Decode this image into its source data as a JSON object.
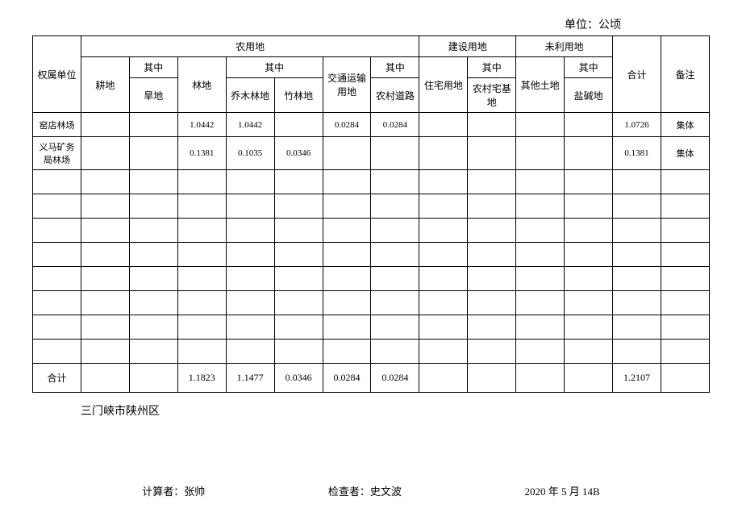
{
  "unit_label": "单位：公顷",
  "headers": {
    "owner_unit": "权属单位",
    "agri_land": "农用地",
    "construction_land": "建设用地",
    "unused_land": "未利用地",
    "total": "合计",
    "remark": "备注",
    "cultivated": "耕地",
    "of_which": "其中",
    "forest": "林地",
    "traffic": "交通运输用地",
    "residential": "住宅用地",
    "other_land": "其他土地",
    "dry_land": "旱地",
    "arbor_forest": "乔木林地",
    "bamboo_forest": "竹林地",
    "rural_road": "农村道路",
    "rural_homestead": "农村宅基地",
    "saline_alkali": "盐碱地"
  },
  "rows": [
    {
      "owner": "窑店林场",
      "cultivated": "",
      "dry_land": "",
      "forest": "1.0442",
      "arbor_forest": "1.0442",
      "bamboo_forest": "",
      "traffic": "0.0284",
      "rural_road": "0.0284",
      "residential": "",
      "rural_homestead": "",
      "other_land": "",
      "saline_alkali": "",
      "total": "1.0726",
      "remark": "集体"
    },
    {
      "owner": "义马矿务局林场",
      "cultivated": "",
      "dry_land": "",
      "forest": "0.1381",
      "arbor_forest": "0.1035",
      "bamboo_forest": "0.0346",
      "traffic": "",
      "rural_road": "",
      "residential": "",
      "rural_homestead": "",
      "other_land": "",
      "saline_alkali": "",
      "total": "0.1381",
      "remark": "集体"
    }
  ],
  "totals": {
    "owner": "合计",
    "cultivated": "",
    "dry_land": "",
    "forest": "1.1823",
    "arbor_forest": "1.1477",
    "bamboo_forest": "0.0346",
    "traffic": "0.0284",
    "rural_road": "0.0284",
    "residential": "",
    "rural_homestead": "",
    "other_land": "",
    "saline_alkali": "",
    "total": "1.2107",
    "remark": ""
  },
  "region": "三门峡市陕州区",
  "footer": {
    "calc_label": "计算者：",
    "calc_person": "张帅",
    "check_label": "检查者：",
    "check_person": "史文波",
    "date": "2020 年 5 月 14B"
  },
  "empty_rows_count": 8
}
